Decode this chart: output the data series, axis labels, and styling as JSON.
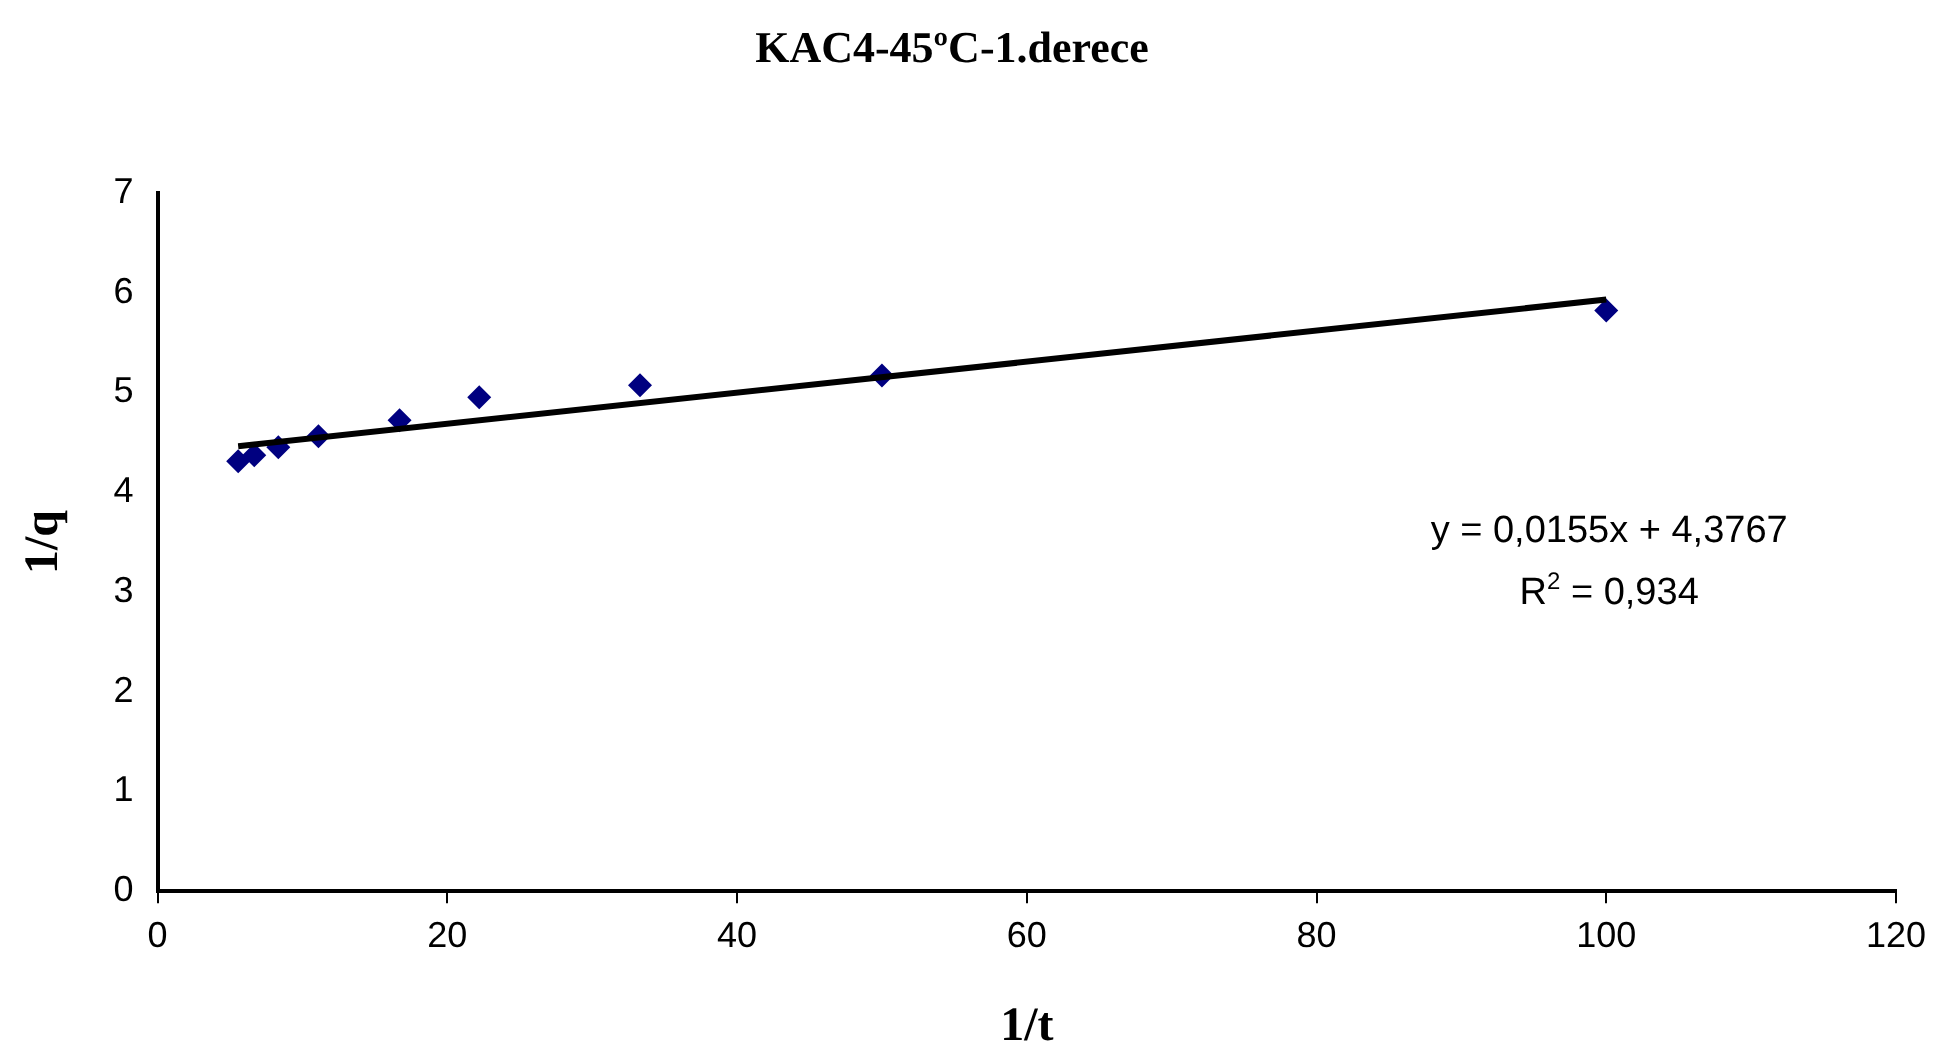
{
  "chart_data": {
    "type": "scatter",
    "title": "KAC4-45ºC-1.derece",
    "xlabel": "1/t",
    "ylabel": "1/q",
    "x": [
      5.56,
      6.67,
      8.33,
      11.1,
      16.7,
      22.2,
      33.3,
      50,
      100
    ],
    "series": [
      {
        "color": "#000080",
        "values": [
          4.31,
          4.37,
          4.45,
          4.56,
          4.72,
          4.95,
          5.07,
          5.17,
          5.82
        ]
      },
      {
        "type": "line",
        "color": "#000000",
        "x": [
          5.56,
          100
        ],
        "values": [
          4.46,
          5.93
        ],
        "marker": "none"
      }
    ],
    "marker": "diamond",
    "xlim": [
      0,
      120
    ],
    "xticks": [
      0,
      20,
      40,
      60,
      80,
      100,
      120
    ],
    "ylim": [
      0,
      7
    ],
    "yticks": [
      0,
      1,
      2,
      3,
      4,
      5,
      6,
      7
    ],
    "grid": false,
    "legend": false,
    "annotations": [
      "y = 0,0155x + 4,3767",
      "R$^{2}$ = 0,934"
    ]
  }
}
